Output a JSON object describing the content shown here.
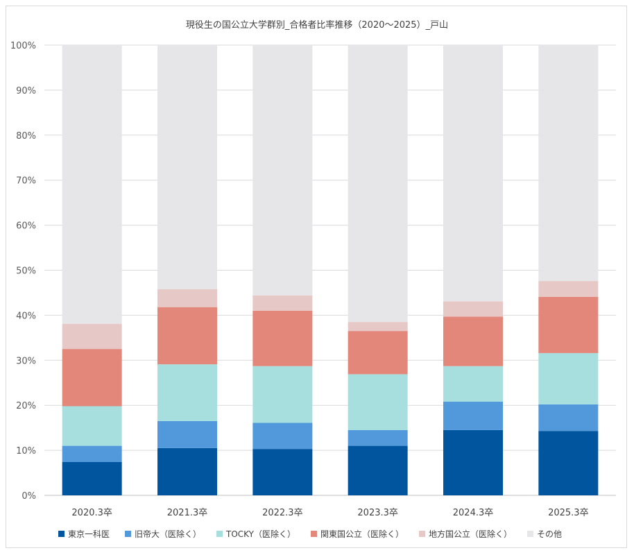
{
  "chart_data": {
    "type": "bar",
    "stacked": true,
    "title": "現役生の国公立大学群別_合格者比率推移（2020～2025）_戸山",
    "categories": [
      "2020.3卒",
      "2021.3卒",
      "2022.3卒",
      "2023.3卒",
      "2024.3卒",
      "2025.3卒"
    ],
    "ylim": [
      0,
      100
    ],
    "y_ticks": [
      "0%",
      "10%",
      "20%",
      "30%",
      "40%",
      "50%",
      "60%",
      "70%",
      "80%",
      "90%",
      "100%"
    ],
    "grid": true,
    "legend_position": "bottom",
    "series": [
      {
        "name": "東京一科医",
        "color": "#00559f",
        "values": [
          7.4,
          10.5,
          10.3,
          11.0,
          14.5,
          14.3
        ]
      },
      {
        "name": "旧帝大（医除く）",
        "color": "#5299dc",
        "values": [
          3.6,
          6.0,
          5.8,
          3.5,
          6.3,
          5.9
        ]
      },
      {
        "name": "TOCKY（医除く）",
        "color": "#a6dfde",
        "values": [
          8.8,
          12.6,
          12.6,
          12.4,
          7.9,
          11.4
        ]
      },
      {
        "name": "関東国公立（医除く）",
        "color": "#e3877b",
        "values": [
          12.7,
          12.7,
          12.3,
          9.6,
          11.0,
          12.5
        ]
      },
      {
        "name": "地方国公立（医除く）",
        "color": "#e6c8c6",
        "values": [
          5.6,
          4.0,
          3.4,
          2.0,
          3.4,
          3.5
        ]
      },
      {
        "name": "その他",
        "color": "#e6e6e8",
        "values": [
          61.9,
          54.2,
          55.6,
          61.5,
          56.9,
          52.4
        ]
      }
    ]
  }
}
